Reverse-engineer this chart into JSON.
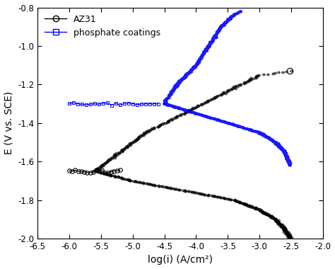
{
  "xlabel": "log(i) (A/cm²)",
  "ylabel": "E (V vs. SCE)",
  "xlim": [
    -6.5,
    -2.0
  ],
  "ylim": [
    -2.0,
    -0.8
  ],
  "xticks": [
    -6.5,
    -6.0,
    -5.5,
    -5.0,
    -4.5,
    -4.0,
    -3.5,
    -3.0,
    -2.5,
    -2.0
  ],
  "yticks": [
    -2.0,
    -1.8,
    -1.6,
    -1.4,
    -1.2,
    -1.0,
    -0.8
  ],
  "az31_color": "black",
  "phosphate_color": "blue",
  "background_color": "white",
  "legend_az31": "AZ31",
  "legend_phosphate": "phosphate coatings"
}
